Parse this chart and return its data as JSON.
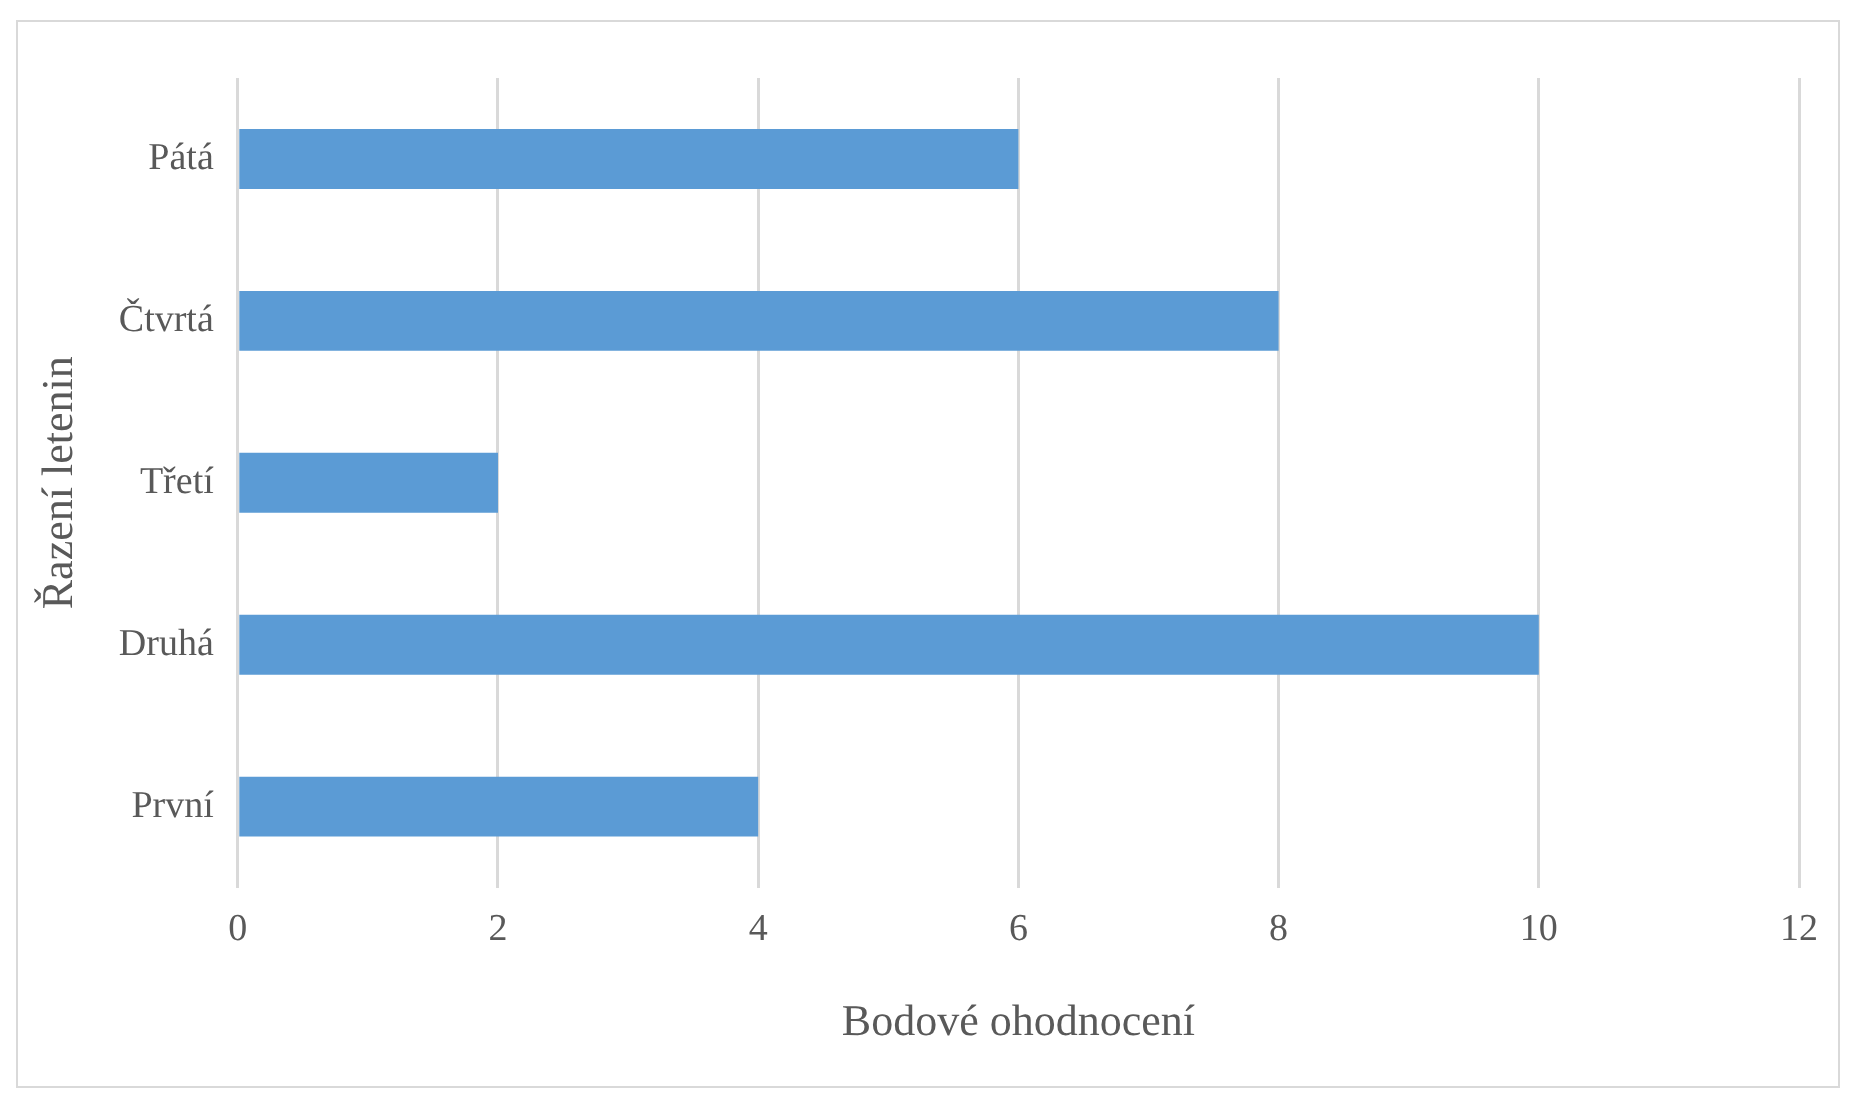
{
  "chart_data": {
    "type": "bar",
    "orientation": "horizontal",
    "categories": [
      "Pátá",
      "Čtvrtá",
      "Třetí",
      "Druhá",
      "První"
    ],
    "values": [
      6,
      8,
      2,
      10,
      4
    ],
    "color": "#5b9bd5",
    "xlim": [
      0,
      12
    ],
    "xticks": [
      0,
      2,
      4,
      6,
      8,
      10,
      12
    ],
    "xlabel": "Bodové ohodnocení",
    "ylabel": "Řazení letenin",
    "grid": "x",
    "legend": false
  }
}
